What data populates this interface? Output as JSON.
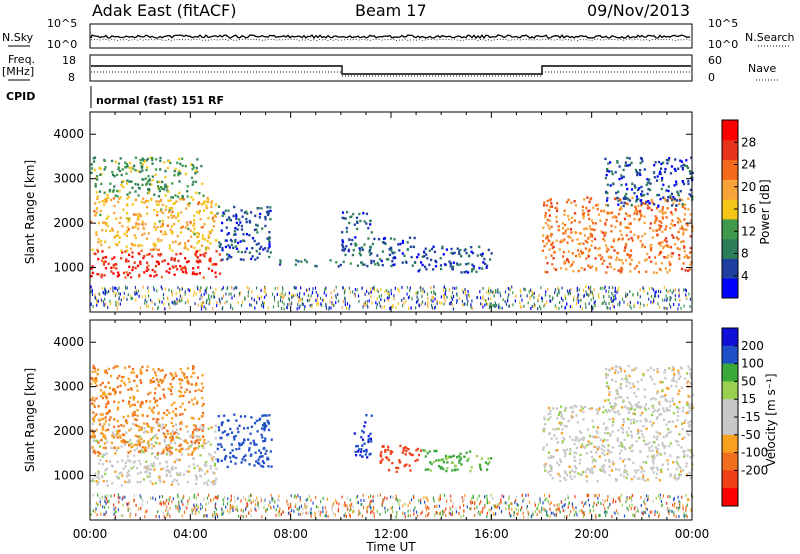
{
  "header": {
    "station": "Adak East (fitACF)",
    "beam": "Beam 17",
    "date": "09/Nov/2013"
  },
  "top_panels": {
    "nsky_label": "N.Sky",
    "nsearch_label": "N.Search",
    "noise_ticks": [
      "10^5",
      "10^0"
    ],
    "freq_label_1": "Freq.",
    "freq_label_2": "[MHz]",
    "freq_ticks": [
      "18",
      "8"
    ],
    "nave_label": "Nave",
    "nave_ticks": [
      "60",
      "0"
    ],
    "cpid_label": "CPID",
    "cpid_text": "normal (fast) 151 RF"
  },
  "colors": {
    "power_scale": [
      "#0000ff",
      "#1e3fa0",
      "#2e7d5a",
      "#3e9a4a",
      "#f5c518",
      "#f8a23a",
      "#f56a1a",
      "#e8341c",
      "#ff0000"
    ],
    "velocity_scale": [
      "#1010d8",
      "#2050c8",
      "#3aa83a",
      "#9ad050",
      "#c8c8c8",
      "#c8c8c8",
      "#f8a020",
      "#f07020",
      "#f04018",
      "#ff0000"
    ],
    "ground_scatter": "#bcbcbc"
  },
  "chart_data": [
    {
      "type": "heatmap",
      "name": "power",
      "ylabel": "Slant Range [km]",
      "y_ticks": [
        1000,
        2000,
        3000,
        4000
      ],
      "ylim": [
        0,
        4500
      ],
      "xlim": [
        0,
        24
      ],
      "colorbar_label": "Power [dB]",
      "colorbar_ticks": [
        4,
        8,
        12,
        16,
        20,
        24,
        28
      ],
      "colorbar_range": [
        0,
        32
      ],
      "scatter_regions": [
        {
          "t0": 0.0,
          "t1": 5.2,
          "r0": 800,
          "r1": 1400,
          "value": 28
        },
        {
          "t0": 0.0,
          "t1": 5.0,
          "r0": 1400,
          "r1": 2600,
          "value": 18
        },
        {
          "t0": 0.0,
          "t1": 4.5,
          "r0": 2600,
          "r1": 3500,
          "value": 12
        },
        {
          "t0": 5.0,
          "t1": 7.2,
          "r0": 1200,
          "r1": 2400,
          "value": 6
        },
        {
          "t0": 7.5,
          "t1": 9.0,
          "r0": 1050,
          "r1": 1200,
          "value": 8
        },
        {
          "t0": 9.5,
          "t1": 11.0,
          "r0": 1050,
          "r1": 1200,
          "value": 10
        },
        {
          "t0": 10.0,
          "t1": 11.2,
          "r0": 1300,
          "r1": 2300,
          "value": 6
        },
        {
          "t0": 11.0,
          "t1": 13.0,
          "r0": 1050,
          "r1": 1700,
          "value": 6
        },
        {
          "t0": 13.0,
          "t1": 16.0,
          "r0": 900,
          "r1": 1500,
          "value": 6
        },
        {
          "t0": 18.0,
          "t1": 24.0,
          "r0": 900,
          "r1": 2600,
          "value": 22
        },
        {
          "t0": 20.5,
          "t1": 24.0,
          "r0": 2400,
          "r1": 3500,
          "value": 6
        }
      ]
    },
    {
      "type": "heatmap",
      "name": "velocity",
      "ylabel": "Slant Range [km]",
      "y_ticks": [
        1000,
        2000,
        3000,
        4000
      ],
      "ylim": [
        0,
        4500
      ],
      "xlim": [
        0,
        24
      ],
      "xlabel": "Time UT",
      "x_ticks": [
        "00:00",
        "04:00",
        "08:00",
        "12:00",
        "16:00",
        "20:00",
        "00:00"
      ],
      "colorbar_label": "Velocity [m s⁻¹]",
      "colorbar_ticks": [
        200,
        100,
        50,
        15,
        -15,
        -50,
        -100,
        -200
      ],
      "scatter_regions": [
        {
          "t0": 0.0,
          "t1": 5.0,
          "r0": 800,
          "r1": 2200,
          "value": 0
        },
        {
          "t0": 0.0,
          "t1": 4.5,
          "r0": 1500,
          "r1": 3500,
          "value": -50
        },
        {
          "t0": 5.0,
          "t1": 7.2,
          "r0": 1200,
          "r1": 2400,
          "value": 150
        },
        {
          "t0": 10.5,
          "t1": 11.2,
          "r0": 1400,
          "r1": 2400,
          "value": 200
        },
        {
          "t0": 11.5,
          "t1": 13.2,
          "r0": 1100,
          "r1": 1700,
          "value": -150
        },
        {
          "t0": 13.2,
          "t1": 16.0,
          "r0": 1100,
          "r1": 1600,
          "value": 60
        },
        {
          "t0": 18.0,
          "t1": 24.0,
          "r0": 900,
          "r1": 2600,
          "value": 0
        },
        {
          "t0": 20.5,
          "t1": 24.0,
          "r0": 2400,
          "r1": 3500,
          "value": 0
        }
      ]
    }
  ]
}
